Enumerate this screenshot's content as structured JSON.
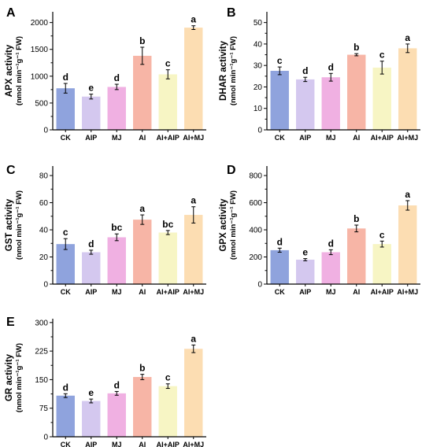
{
  "figure": {
    "categories": [
      "CK",
      "AIP",
      "MJ",
      "AI",
      "AI+AIP",
      "AI+MJ"
    ],
    "bar_colors": [
      "#8FA3DD",
      "#D4C8EF",
      "#F0B0E2",
      "#F7B5A6",
      "#F7F5C4",
      "#FCDDB2"
    ]
  },
  "chart_data": [
    {
      "panel": "A",
      "type": "bar",
      "ylabel_line1": "APX activity",
      "ylabel_line2": "(nmol min⁻¹g⁻¹ FW)",
      "ylim": [
        0,
        2200
      ],
      "yticks": [
        0,
        500,
        1000,
        1500,
        2000
      ],
      "categories": [
        "CK",
        "AIP",
        "MJ",
        "AI",
        "AI+AIP",
        "AI+MJ"
      ],
      "values": [
        775,
        620,
        800,
        1380,
        1035,
        1905
      ],
      "errors": [
        90,
        45,
        50,
        160,
        85,
        35
      ],
      "letters": [
        "d",
        "e",
        "d",
        "b",
        "c",
        "a"
      ]
    },
    {
      "panel": "B",
      "type": "bar",
      "ylabel_line1": "DHAR activity",
      "ylabel_line2": "(nmol min⁻¹g⁻¹ FW)",
      "ylim": [
        0,
        55
      ],
      "yticks": [
        0,
        10,
        20,
        30,
        40,
        50
      ],
      "categories": [
        "CK",
        "AIP",
        "MJ",
        "AI",
        "AI+AIP",
        "AI+MJ"
      ],
      "values": [
        27.5,
        23.5,
        24.5,
        35,
        29,
        38
      ],
      "errors": [
        1.8,
        1.0,
        1.8,
        0.5,
        3.0,
        2.0
      ],
      "letters": [
        "c",
        "d",
        "d",
        "b",
        "c",
        "a"
      ]
    },
    {
      "panel": "C",
      "type": "bar",
      "ylabel_line1": "GST activity",
      "ylabel_line2": "(nmol min⁻¹g⁻¹ FW)",
      "ylim": [
        0,
        87
      ],
      "yticks": [
        0,
        20,
        40,
        60,
        80
      ],
      "categories": [
        "CK",
        "AIP",
        "MJ",
        "AI",
        "AI+AIP",
        "AI+MJ"
      ],
      "values": [
        29.5,
        23.5,
        34.5,
        47.5,
        38,
        51
      ],
      "errors": [
        4.0,
        1.5,
        2.5,
        3.5,
        1.5,
        6.0
      ],
      "letters": [
        "c",
        "d",
        "bc",
        "a",
        "bc",
        "a"
      ]
    },
    {
      "panel": "D",
      "type": "bar",
      "ylabel_line1": "GPX activity",
      "ylabel_line2": "(nmol min⁻¹g⁻¹ FW)",
      "ylim": [
        0,
        870
      ],
      "yticks": [
        0,
        200,
        400,
        600,
        800
      ],
      "categories": [
        "CK",
        "AIP",
        "MJ",
        "AI",
        "AI+AIP",
        "AI+MJ"
      ],
      "values": [
        250,
        180,
        235,
        410,
        295,
        580
      ],
      "errors": [
        15,
        8,
        18,
        25,
        22,
        35
      ],
      "letters": [
        "d",
        "e",
        "d",
        "b",
        "c",
        "a"
      ]
    },
    {
      "panel": "E",
      "type": "bar",
      "ylabel_line1": "GR activity",
      "ylabel_line2": "(nmol min⁻¹g⁻¹ FW)",
      "ylim": [
        0,
        310
      ],
      "yticks": [
        0,
        75,
        150,
        225,
        300
      ],
      "categories": [
        "CK",
        "AIP",
        "MJ",
        "AI",
        "AI+AIP",
        "AI+MJ"
      ],
      "values": [
        108,
        94,
        114,
        157,
        133,
        231
      ],
      "errors": [
        5,
        5,
        5,
        7,
        6,
        10
      ],
      "letters": [
        "d",
        "e",
        "d",
        "b",
        "c",
        "a"
      ]
    }
  ]
}
